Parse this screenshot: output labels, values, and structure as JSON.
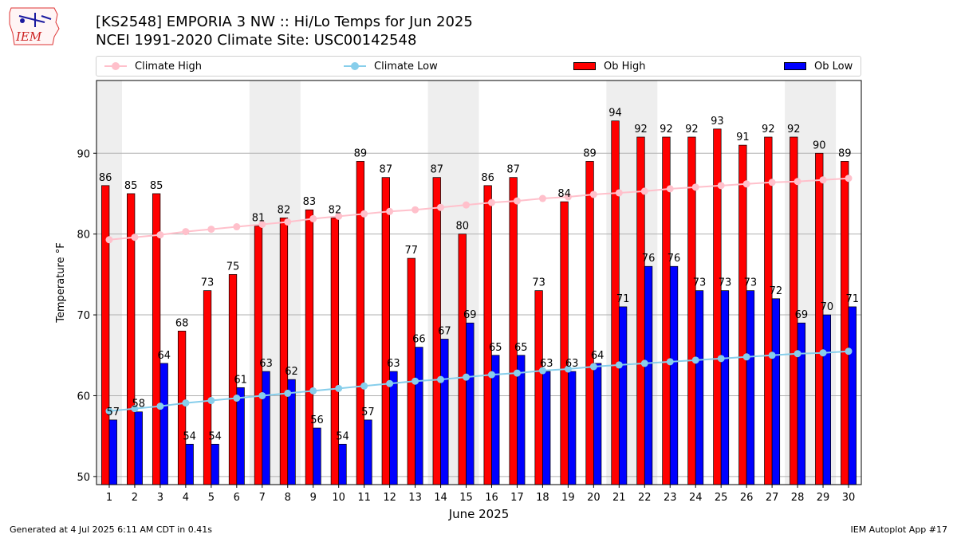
{
  "header": {
    "title": "[KS2548] EMPORIA 3 NW :: Hi/Lo Temps for Jun 2025",
    "subtitle": "NCEI 1991-2020 Climate Site: USC00142548",
    "logo_text": "IEM"
  },
  "footer": {
    "generated": "Generated at 4 Jul 2025 6:11 AM CDT in 0.41s",
    "app": "IEM Autoplot App #17"
  },
  "legend": [
    {
      "label": "Climate High",
      "kind": "line",
      "color": "#ffc0cb"
    },
    {
      "label": "Climate Low",
      "kind": "line",
      "color": "#87ceeb"
    },
    {
      "label": "Ob High",
      "kind": "bar",
      "color": "#ff0000"
    },
    {
      "label": "Ob Low",
      "kind": "bar",
      "color": "#0000ff"
    }
  ],
  "chart_data": {
    "type": "bar",
    "xlabel": "June 2025",
    "ylabel": "Temperature °F",
    "ylim": [
      49,
      99
    ],
    "yticks": [
      50,
      60,
      70,
      80,
      90
    ],
    "grid": "horizontal",
    "legend_position": "top",
    "categories": [
      "1",
      "2",
      "3",
      "4",
      "5",
      "6",
      "7",
      "8",
      "9",
      "10",
      "11",
      "12",
      "13",
      "14",
      "15",
      "16",
      "17",
      "18",
      "19",
      "20",
      "21",
      "22",
      "23",
      "24",
      "25",
      "26",
      "27",
      "28",
      "29",
      "30"
    ],
    "weekend_shading": [
      [
        1,
        1
      ],
      [
        7,
        8
      ],
      [
        14,
        15
      ],
      [
        21,
        22
      ],
      [
        28,
        29
      ]
    ],
    "series": [
      {
        "name": "Ob High",
        "type": "bar",
        "color": "#ff0000",
        "values": [
          86,
          85,
          85,
          68,
          73,
          75,
          81,
          82,
          83,
          82,
          89,
          87,
          77,
          87,
          80,
          86,
          87,
          73,
          84,
          89,
          94,
          92,
          92,
          92,
          93,
          91,
          92,
          92,
          90,
          89
        ]
      },
      {
        "name": "Ob Low",
        "type": "bar",
        "color": "#0000ff",
        "values": [
          57,
          58,
          64,
          54,
          54,
          61,
          63,
          62,
          56,
          54,
          57,
          63,
          66,
          67,
          69,
          65,
          65,
          63,
          63,
          64,
          71,
          76,
          76,
          73,
          73,
          73,
          72,
          69,
          70,
          71
        ]
      },
      {
        "name": "Climate High",
        "type": "line",
        "color": "#ffc0cb",
        "values": [
          79.3,
          79.6,
          79.9,
          80.3,
          80.6,
          80.9,
          81.2,
          81.5,
          81.9,
          82.2,
          82.5,
          82.8,
          83.0,
          83.3,
          83.6,
          83.9,
          84.1,
          84.4,
          84.6,
          84.9,
          85.1,
          85.3,
          85.6,
          85.8,
          86.0,
          86.2,
          86.4,
          86.5,
          86.7,
          86.9
        ]
      },
      {
        "name": "Climate Low",
        "type": "line",
        "color": "#87ceeb",
        "values": [
          58.1,
          58.4,
          58.7,
          59.1,
          59.4,
          59.7,
          60.0,
          60.3,
          60.6,
          60.9,
          61.2,
          61.5,
          61.8,
          62.0,
          62.3,
          62.6,
          62.8,
          63.1,
          63.3,
          63.6,
          63.8,
          64.0,
          64.2,
          64.4,
          64.6,
          64.8,
          65.0,
          65.2,
          65.3,
          65.5
        ]
      }
    ]
  }
}
